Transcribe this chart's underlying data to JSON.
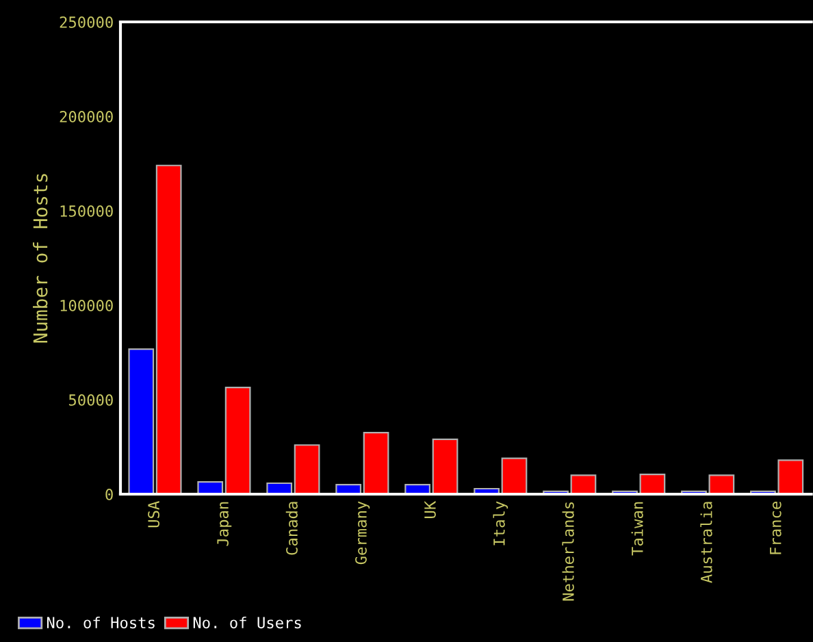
{
  "chart_data": {
    "type": "bar",
    "ylabel": "Number of Hosts",
    "categories": [
      "USA",
      "Japan",
      "Canada",
      "Germany",
      "UK",
      "Italy",
      "Netherlands",
      "Taiwan",
      "Australia",
      "France"
    ],
    "series": [
      {
        "name": "No. of Hosts",
        "color": "#0000ff",
        "values": [
          76800,
          6500,
          5800,
          5000,
          5000,
          2900,
          1500,
          1500,
          1500,
          1500
        ]
      },
      {
        "name": "No. of Users",
        "color": "#ff0000",
        "values": [
          174000,
          56500,
          26000,
          32600,
          29000,
          19000,
          10000,
          10500,
          10000,
          18000
        ]
      }
    ],
    "ylim": [
      0,
      250000
    ],
    "yticks": [
      0,
      50000,
      100000,
      150000,
      200000,
      250000
    ],
    "grid": false,
    "legend": "bottom left"
  }
}
